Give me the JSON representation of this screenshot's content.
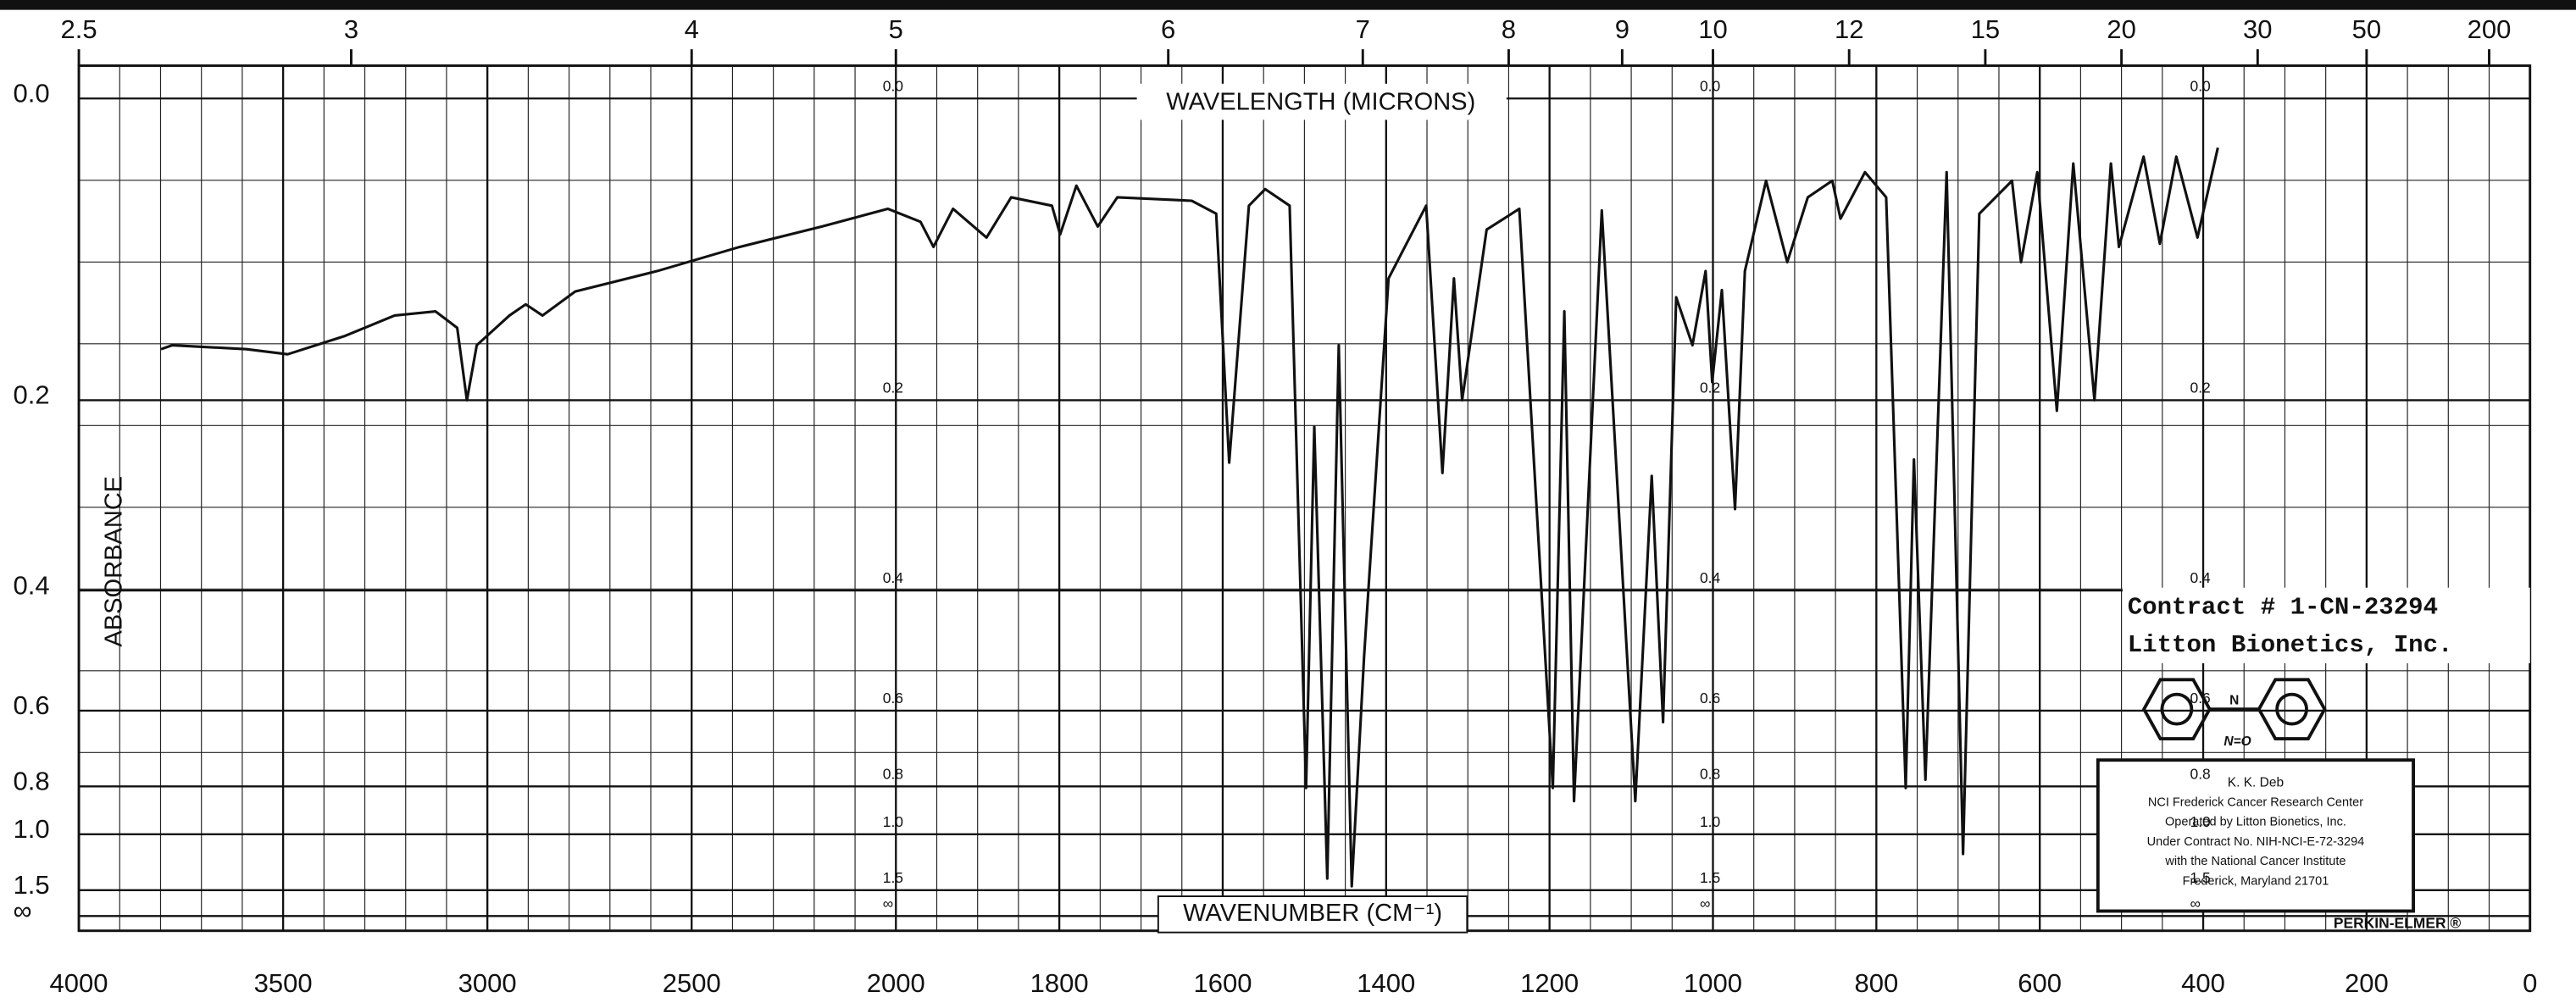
{
  "chart_data": {
    "type": "line",
    "x_title": "WAVENUMBER (CM⁻¹)",
    "x2_title": "WAVELENGTH (MICRONS)",
    "y_title": "ABSORBANCE",
    "xlim": [
      4000,
      0
    ],
    "x_scale_break": 2000,
    "xticks": [
      4000,
      3500,
      3000,
      2500,
      2000,
      1800,
      1600,
      1400,
      1200,
      1000,
      800,
      600,
      400,
      200,
      0
    ],
    "x2ticks": [
      2.5,
      3,
      4,
      5,
      6,
      7,
      8,
      9,
      10,
      12,
      15,
      20,
      30,
      50,
      200
    ],
    "y_scale": "transmittance",
    "yticks": [
      {
        "value": 0,
        "label": "0.0"
      },
      0.2,
      0.4,
      0.6,
      0.8,
      {
        "value": 1,
        "label": "1.0"
      },
      1.5,
      {
        "value": null,
        "label": "∞"
      }
    ],
    "grid": true,
    "x": [
      3799,
      3771,
      3590,
      3489,
      3348,
      3227,
      3127,
      3074,
      3050,
      3026,
      2946,
      2906,
      2865,
      2785,
      2584,
      2382,
      2181,
      2020,
      1970,
      1954,
      1930,
      1889,
      1859,
      1809,
      1799,
      1779,
      1753,
      1729,
      1638,
      1608,
      1592,
      1568,
      1548,
      1518,
      1498,
      1488,
      1472,
      1458,
      1442,
      1427,
      1397,
      1351,
      1331,
      1317,
      1307,
      1277,
      1237,
      1196,
      1182,
      1170,
      1136,
      1095,
      1075,
      1061,
      1045,
      1025,
      1009,
      1001,
      989,
      973,
      961,
      935,
      909,
      884,
      854,
      844,
      814,
      788,
      764,
      754,
      740,
      714,
      694,
      674,
      634,
      623,
      603,
      579,
      559,
      533,
      513,
      503,
      473,
      453,
      433,
      407,
      382
    ],
    "series": [
      {
        "color": "#111111",
        "values": [
          0.159,
          0.156,
          0.159,
          0.163,
          0.149,
          0.134,
          0.131,
          0.143,
          0.2,
          0.156,
          0.134,
          0.126,
          0.134,
          0.117,
          0.103,
          0.087,
          0.074,
          0.063,
          0.071,
          0.087,
          0.063,
          0.081,
          0.056,
          0.061,
          0.079,
          0.049,
          0.074,
          0.056,
          0.058,
          0.066,
          0.256,
          0.061,
          0.051,
          0.061,
          0.805,
          0.223,
          1.34,
          0.156,
          1.44,
          0.499,
          0.108,
          0.061,
          0.266,
          0.108,
          0.2,
          0.076,
          0.063,
          0.805,
          0.131,
          0.852,
          0.064,
          0.852,
          0.269,
          0.625,
          0.121,
          0.156,
          0.103,
          0.185,
          0.116,
          0.303,
          0.103,
          0.046,
          0.097,
          0.056,
          0.046,
          0.069,
          0.041,
          0.056,
          0.805,
          0.253,
          0.778,
          0.041,
          1.12,
          0.066,
          0.046,
          0.097,
          0.041,
          0.209,
          0.036,
          0.2,
          0.036,
          0.087,
          0.032,
          0.085,
          0.032,
          0.081,
          0.027
        ]
      }
    ],
    "annotations": {
      "contract": [
        "Contract # 1-CN-23294",
        "Litton Bionetics, Inc."
      ],
      "structure": [
        "N",
        "N=O"
      ],
      "stamp": [
        "K. K. Deb",
        "NCI Frederick Cancer Research Center",
        "Operated by Litton Bionetics, Inc.",
        "Under Contract No. NIH-NCI-E-72-3294",
        "with the National Cancer Institute",
        "Frederick, Maryland 21701"
      ],
      "brand": "PERKIN-ELMER ®"
    }
  }
}
